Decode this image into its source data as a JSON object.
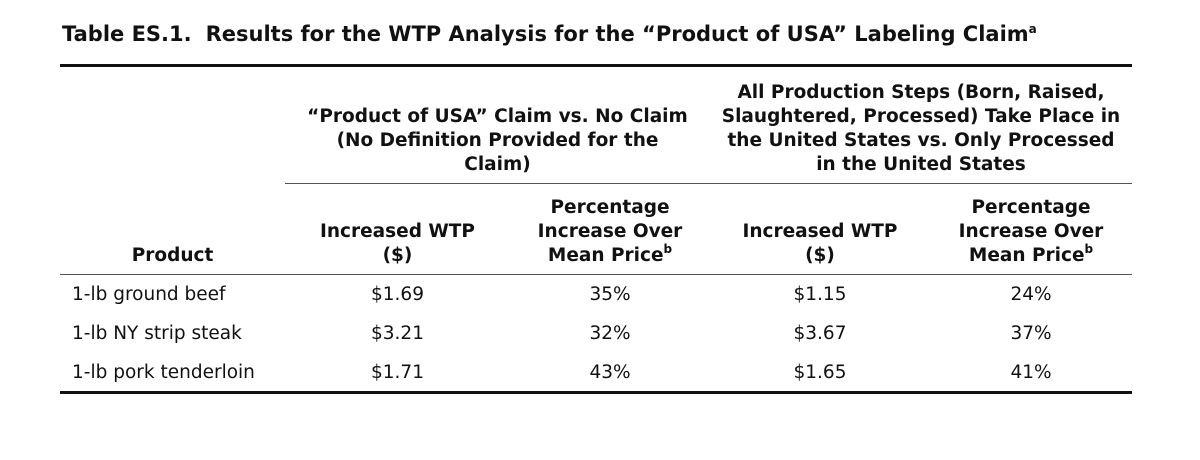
{
  "table": {
    "caption": {
      "label": "Table ES.1.",
      "text": "Results for the WTP Analysis for the “Product of USA” Labeling Claim",
      "note": "a"
    },
    "group_headers": [
      "“Product of USA” Claim vs. No Claim (No Definition Provided for the Claim)",
      "All Production Steps (Born, Raised, Slaughtered, Processed) Take Place in the United States vs. Only Processed in the United States"
    ],
    "columns": [
      {
        "text": "Product"
      },
      {
        "text": "Increased WTP ($)"
      },
      {
        "text": "Percentage Increase Over Mean Price",
        "note": "b"
      },
      {
        "text": "Increased WTP ($)"
      },
      {
        "text": "Percentage Increase Over Mean Price",
        "note": "b"
      }
    ],
    "rows": [
      [
        "1-lb ground beef",
        "$1.69",
        "35%",
        "$1.15",
        "24%"
      ],
      [
        "1-lb NY strip steak",
        "$3.21",
        "32%",
        "$3.67",
        "37%"
      ],
      [
        "1-lb pork tenderloin",
        "$1.71",
        "43%",
        "$1.65",
        "41%"
      ]
    ]
  }
}
